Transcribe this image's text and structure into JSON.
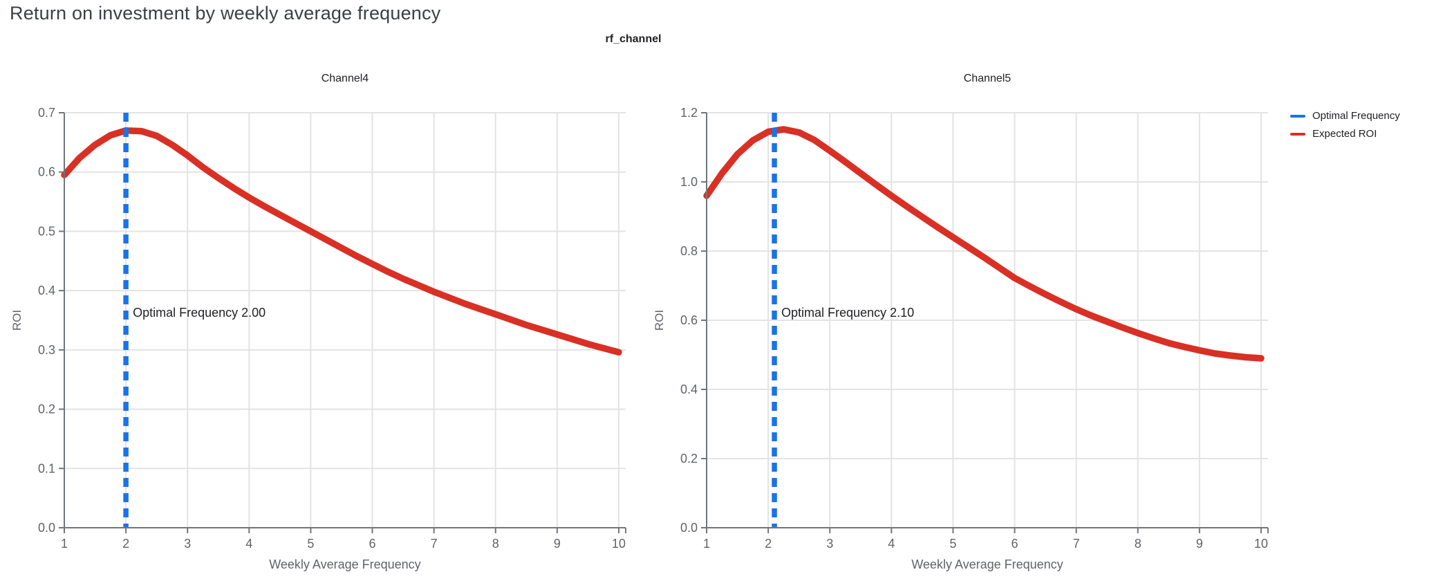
{
  "page": {
    "title": "Return on investment by weekly average frequency",
    "facet_title": "rf_channel"
  },
  "legend": {
    "items": [
      {
        "label": "Optimal Frequency",
        "color": "#1a73e8"
      },
      {
        "label": "Expected ROI",
        "color": "#d93025"
      }
    ]
  },
  "colors": {
    "expected_roi_line": "#d93025",
    "optimal_frequency_line": "#1a73e8",
    "gridline": "#e3e3e3",
    "axis_line": "#70757a",
    "tick_label": "#5f6368",
    "axis_title": "#5f6368",
    "chart_title": "#202124",
    "annotation_text": "#202124",
    "page_title": "#3c4043"
  },
  "chart_data": [
    {
      "type": "line",
      "title": "Channel4",
      "xlabel": "Weekly Average Frequency",
      "ylabel": "ROI",
      "xlim": [
        1,
        10
      ],
      "ylim": [
        0,
        0.7
      ],
      "grid": true,
      "xticks": {
        "labels": [
          "1",
          "2",
          "3",
          "4",
          "5",
          "6",
          "7",
          "8",
          "9",
          "10"
        ],
        "values": [
          1,
          2,
          3,
          4,
          5,
          6,
          7,
          8,
          9,
          10
        ]
      },
      "yticks": {
        "labels": [
          "0.0",
          "0.1",
          "0.2",
          "0.3",
          "0.4",
          "0.5",
          "0.6",
          "0.7"
        ],
        "values": [
          0,
          0.1,
          0.2,
          0.3,
          0.4,
          0.5,
          0.6,
          0.7
        ]
      },
      "optimal_frequency": 2.0,
      "annotation": "Optimal Frequency  2.00",
      "series": [
        {
          "name": "Expected ROI",
          "x": [
            1,
            1.25,
            1.5,
            1.75,
            2,
            2.25,
            2.5,
            2.75,
            3,
            3.25,
            3.5,
            3.75,
            4,
            4.25,
            4.5,
            4.75,
            5,
            5.25,
            5.5,
            5.75,
            6,
            6.25,
            6.5,
            6.75,
            7,
            7.25,
            7.5,
            7.75,
            8,
            8.25,
            8.5,
            8.75,
            9,
            9.25,
            9.5,
            9.75,
            10
          ],
          "y": [
            0.595,
            0.624,
            0.646,
            0.662,
            0.67,
            0.669,
            0.661,
            0.646,
            0.628,
            0.608,
            0.59,
            0.573,
            0.557,
            0.542,
            0.528,
            0.514,
            0.5,
            0.486,
            0.472,
            0.458,
            0.445,
            0.432,
            0.42,
            0.409,
            0.398,
            0.388,
            0.378,
            0.369,
            0.36,
            0.351,
            0.342,
            0.334,
            0.326,
            0.318,
            0.31,
            0.303,
            0.296
          ]
        },
        {
          "name": "Optimal Frequency",
          "type": "vline",
          "x": 2.0
        }
      ]
    },
    {
      "type": "line",
      "title": "Channel5",
      "xlabel": "Weekly Average Frequency",
      "ylabel": "ROI",
      "xlim": [
        1,
        10
      ],
      "ylim": [
        0,
        1.2
      ],
      "grid": true,
      "xticks": {
        "labels": [
          "1",
          "2",
          "3",
          "4",
          "5",
          "6",
          "7",
          "8",
          "9",
          "10"
        ],
        "values": [
          1,
          2,
          3,
          4,
          5,
          6,
          7,
          8,
          9,
          10
        ]
      },
      "yticks": {
        "labels": [
          "0.0",
          "0.2",
          "0.4",
          "0.6",
          "0.8",
          "1.0",
          "1.2"
        ],
        "values": [
          0,
          0.2,
          0.4,
          0.6,
          0.8,
          1.0,
          1.2
        ]
      },
      "optimal_frequency": 2.1,
      "annotation": "Optimal Frequency  2.10",
      "series": [
        {
          "name": "Expected ROI",
          "x": [
            1,
            1.25,
            1.5,
            1.75,
            2,
            2.25,
            2.5,
            2.75,
            3,
            3.25,
            3.5,
            3.75,
            4,
            4.25,
            4.5,
            4.75,
            5,
            5.25,
            5.5,
            5.75,
            6,
            6.25,
            6.5,
            6.75,
            7,
            7.25,
            7.5,
            7.75,
            8,
            8.25,
            8.5,
            8.75,
            9,
            9.25,
            9.5,
            9.75,
            10
          ],
          "y": [
            0.96,
            1.025,
            1.08,
            1.12,
            1.145,
            1.152,
            1.143,
            1.121,
            1.09,
            1.058,
            1.025,
            0.992,
            0.96,
            0.929,
            0.899,
            0.869,
            0.84,
            0.811,
            0.782,
            0.752,
            0.722,
            0.698,
            0.675,
            0.653,
            0.632,
            0.613,
            0.596,
            0.579,
            0.563,
            0.548,
            0.534,
            0.523,
            0.513,
            0.504,
            0.498,
            0.493,
            0.49
          ]
        },
        {
          "name": "Optimal Frequency",
          "type": "vline",
          "x": 2.1
        }
      ]
    }
  ]
}
